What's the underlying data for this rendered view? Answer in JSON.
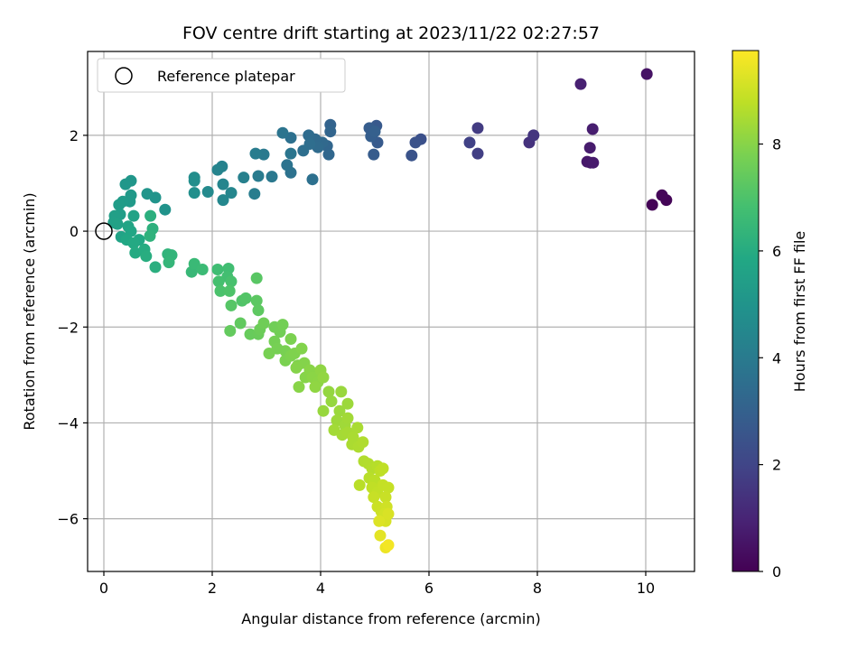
{
  "chart_data": {
    "type": "scatter",
    "title": "FOV centre drift starting at 2023/11/22 02:27:57",
    "xlabel": "Angular distance from reference (arcmin)",
    "ylabel": "Rotation from reference (arcmin)",
    "xlim": [
      -0.3,
      10.9
    ],
    "ylim": [
      -7.1,
      3.75
    ],
    "xticks": [
      0,
      2,
      4,
      6,
      8,
      10
    ],
    "yticks": [
      -6,
      -4,
      -2,
      0,
      2
    ],
    "xtick_labels": [
      "0",
      "2",
      "4",
      "6",
      "8",
      "10"
    ],
    "ytick_labels": [
      "−6",
      "−4",
      "−2",
      "0",
      "2"
    ],
    "grid": true,
    "legend": {
      "position": "upper-left",
      "entries": [
        "Reference platepar"
      ]
    },
    "reference_point": {
      "x": 0,
      "y": 0
    },
    "colorbar": {
      "label": "Hours from first FF file",
      "range": [
        0,
        9.75
      ],
      "ticks": [
        0,
        2,
        4,
        6,
        8
      ],
      "tick_labels": [
        "0",
        "2",
        "4",
        "6",
        "8"
      ],
      "colormap": "viridis"
    },
    "points": [
      [
        10.12,
        0.55,
        0.05
      ],
      [
        10.38,
        0.65,
        0.1
      ],
      [
        10.3,
        0.75,
        0.15
      ],
      [
        10.02,
        3.28,
        0.5
      ],
      [
        8.98,
        1.43,
        0.6
      ],
      [
        8.92,
        1.45,
        0.65
      ],
      [
        9.03,
        1.43,
        0.7
      ],
      [
        8.97,
        1.74,
        0.75
      ],
      [
        9.02,
        2.13,
        0.8
      ],
      [
        8.8,
        3.07,
        0.9
      ],
      [
        7.85,
        1.85,
        1.4
      ],
      [
        7.93,
        2.0,
        1.5
      ],
      [
        6.9,
        2.15,
        1.7
      ],
      [
        6.9,
        1.62,
        1.8
      ],
      [
        6.75,
        1.85,
        1.9
      ],
      [
        5.85,
        1.92,
        2.4
      ],
      [
        5.75,
        1.85,
        2.45
      ],
      [
        5.68,
        1.58,
        2.5
      ],
      [
        5.03,
        2.2,
        2.7
      ],
      [
        5.05,
        1.85,
        2.75
      ],
      [
        4.98,
        1.6,
        2.8
      ],
      [
        4.9,
        2.15,
        2.85
      ],
      [
        4.93,
        1.98,
        2.9
      ],
      [
        5.0,
        2.08,
        2.95
      ],
      [
        4.18,
        2.22,
        3.1
      ],
      [
        4.18,
        2.08,
        3.15
      ],
      [
        4.12,
        1.78,
        3.2
      ],
      [
        4.15,
        1.6,
        3.25
      ],
      [
        4.03,
        1.85,
        3.3
      ],
      [
        3.9,
        1.92,
        3.35
      ],
      [
        3.95,
        1.75,
        3.4
      ],
      [
        3.78,
        2.0,
        3.45
      ],
      [
        3.8,
        1.82,
        3.5
      ],
      [
        3.68,
        1.68,
        3.55
      ],
      [
        3.85,
        1.08,
        3.6
      ],
      [
        3.45,
        1.95,
        3.6
      ],
      [
        3.45,
        1.22,
        3.65
      ],
      [
        3.38,
        1.38,
        3.7
      ],
      [
        3.3,
        2.05,
        3.75
      ],
      [
        3.45,
        1.62,
        3.8
      ],
      [
        3.1,
        1.14,
        3.9
      ],
      [
        2.95,
        1.6,
        3.95
      ],
      [
        2.85,
        1.15,
        4.0
      ],
      [
        2.8,
        1.62,
        4.05
      ],
      [
        2.78,
        0.78,
        4.1
      ],
      [
        2.58,
        1.12,
        4.2
      ],
      [
        2.18,
        1.35,
        4.3
      ],
      [
        2.1,
        1.28,
        4.35
      ],
      [
        2.2,
        0.98,
        4.4
      ],
      [
        2.35,
        0.8,
        4.45
      ],
      [
        2.2,
        0.65,
        4.5
      ],
      [
        1.92,
        0.82,
        4.6
      ],
      [
        1.67,
        1.12,
        4.7
      ],
      [
        1.67,
        1.05,
        4.75
      ],
      [
        1.67,
        0.8,
        4.8
      ],
      [
        1.13,
        0.45,
        4.95
      ],
      [
        0.95,
        0.7,
        5.0
      ],
      [
        0.8,
        0.78,
        5.05
      ],
      [
        0.5,
        1.05,
        5.1
      ],
      [
        0.4,
        0.98,
        5.15
      ],
      [
        0.5,
        0.75,
        5.2
      ],
      [
        0.48,
        0.62,
        5.25
      ],
      [
        0.35,
        0.62,
        5.3
      ],
      [
        0.28,
        0.55,
        5.35
      ],
      [
        0.3,
        0.35,
        5.4
      ],
      [
        0.2,
        0.32,
        5.45
      ],
      [
        0.18,
        0.18,
        5.5
      ],
      [
        0.25,
        0.15,
        5.55
      ],
      [
        0.55,
        0.32,
        5.6
      ],
      [
        0.32,
        -0.12,
        5.65
      ],
      [
        0.45,
        0.1,
        5.7
      ],
      [
        0.5,
        0.0,
        5.75
      ],
      [
        0.42,
        -0.18,
        5.8
      ],
      [
        0.65,
        -0.18,
        5.85
      ],
      [
        0.55,
        -0.25,
        5.9
      ],
      [
        0.58,
        -0.45,
        5.95
      ],
      [
        0.75,
        -0.38,
        6.0
      ],
      [
        0.78,
        -0.52,
        6.05
      ],
      [
        0.95,
        -0.75,
        6.1
      ],
      [
        0.86,
        0.32,
        6.15
      ],
      [
        0.9,
        0.05,
        6.2
      ],
      [
        0.85,
        -0.1,
        6.25
      ],
      [
        1.18,
        -0.48,
        6.3
      ],
      [
        1.25,
        -0.5,
        6.35
      ],
      [
        1.2,
        -0.65,
        6.4
      ],
      [
        1.62,
        -0.85,
        6.5
      ],
      [
        1.67,
        -0.68,
        6.55
      ],
      [
        1.82,
        -0.8,
        6.6
      ],
      [
        2.1,
        -0.8,
        6.7
      ],
      [
        2.3,
        -0.78,
        6.75
      ],
      [
        2.28,
        -0.95,
        6.8
      ],
      [
        2.12,
        -1.05,
        6.85
      ],
      [
        2.35,
        -1.05,
        6.9
      ],
      [
        2.15,
        -1.25,
        6.95
      ],
      [
        2.32,
        -1.25,
        7.0
      ],
      [
        2.55,
        -1.45,
        7.05
      ],
      [
        2.62,
        -1.4,
        7.1
      ],
      [
        2.35,
        -1.55,
        7.15
      ],
      [
        2.82,
        -0.98,
        7.2
      ],
      [
        2.82,
        -1.45,
        7.25
      ],
      [
        2.85,
        -1.65,
        7.3
      ],
      [
        2.52,
        -1.92,
        7.35
      ],
      [
        2.33,
        -2.08,
        7.4
      ],
      [
        2.7,
        -2.15,
        7.45
      ],
      [
        2.85,
        -2.15,
        7.5
      ],
      [
        2.88,
        -2.05,
        7.55
      ],
      [
        2.95,
        -1.92,
        7.6
      ],
      [
        3.15,
        -2.0,
        7.62
      ],
      [
        3.25,
        -2.1,
        7.65
      ],
      [
        3.3,
        -1.95,
        7.67
      ],
      [
        3.15,
        -2.3,
        7.7
      ],
      [
        3.2,
        -2.45,
        7.72
      ],
      [
        3.05,
        -2.55,
        7.75
      ],
      [
        3.35,
        -2.5,
        7.77
      ],
      [
        3.35,
        -2.7,
        7.8
      ],
      [
        3.45,
        -2.25,
        7.82
      ],
      [
        3.45,
        -2.6,
        7.85
      ],
      [
        3.52,
        -2.55,
        7.87
      ],
      [
        3.58,
        -2.8,
        7.9
      ],
      [
        3.65,
        -2.45,
        7.92
      ],
      [
        3.7,
        -2.75,
        7.94
      ],
      [
        3.55,
        -2.85,
        7.96
      ],
      [
        3.72,
        -3.05,
        7.98
      ],
      [
        3.6,
        -3.25,
        8.0
      ],
      [
        3.8,
        -2.9,
        8.02
      ],
      [
        3.85,
        -3.05,
        8.05
      ],
      [
        3.95,
        -3.15,
        8.08
      ],
      [
        4.0,
        -2.9,
        8.1
      ],
      [
        3.9,
        -3.25,
        8.12
      ],
      [
        4.05,
        -3.05,
        8.15
      ],
      [
        4.15,
        -3.35,
        8.18
      ],
      [
        4.2,
        -3.55,
        8.2
      ],
      [
        4.05,
        -3.75,
        8.22
      ],
      [
        4.38,
        -3.35,
        8.25
      ],
      [
        4.35,
        -3.75,
        8.28
      ],
      [
        4.5,
        -3.6,
        8.3
      ],
      [
        4.3,
        -3.95,
        8.32
      ],
      [
        4.45,
        -4.05,
        8.35
      ],
      [
        4.5,
        -3.9,
        8.38
      ],
      [
        4.25,
        -4.15,
        8.4
      ],
      [
        4.4,
        -4.25,
        8.42
      ],
      [
        4.5,
        -4.2,
        8.45
      ],
      [
        4.68,
        -4.1,
        8.48
      ],
      [
        4.6,
        -4.3,
        8.5
      ],
      [
        4.58,
        -4.45,
        8.52
      ],
      [
        4.7,
        -4.5,
        8.55
      ],
      [
        4.78,
        -4.4,
        8.58
      ],
      [
        4.8,
        -4.8,
        8.6
      ],
      [
        4.88,
        -4.85,
        8.62
      ],
      [
        4.95,
        -4.95,
        8.65
      ],
      [
        5.05,
        -4.9,
        8.68
      ],
      [
        4.9,
        -5.15,
        8.7
      ],
      [
        4.72,
        -5.3,
        8.72
      ],
      [
        5.0,
        -5.2,
        8.75
      ],
      [
        5.1,
        -5.0,
        8.78
      ],
      [
        5.15,
        -4.95,
        8.8
      ],
      [
        4.95,
        -5.35,
        8.82
      ],
      [
        5.05,
        -5.45,
        8.85
      ],
      [
        5.15,
        -5.3,
        8.88
      ],
      [
        5.25,
        -5.35,
        8.9
      ],
      [
        4.98,
        -5.55,
        8.92
      ],
      [
        5.2,
        -5.55,
        8.95
      ],
      [
        5.05,
        -5.75,
        8.98
      ],
      [
        5.12,
        -5.85,
        9.0
      ],
      [
        5.22,
        -5.75,
        9.05
      ],
      [
        5.18,
        -5.9,
        9.1
      ],
      [
        5.2,
        -6.05,
        9.15
      ],
      [
        5.25,
        -5.9,
        9.2
      ],
      [
        5.08,
        -6.05,
        9.25
      ],
      [
        5.1,
        -6.35,
        9.35
      ],
      [
        5.2,
        -6.6,
        9.5
      ],
      [
        5.25,
        -6.55,
        9.6
      ]
    ]
  }
}
